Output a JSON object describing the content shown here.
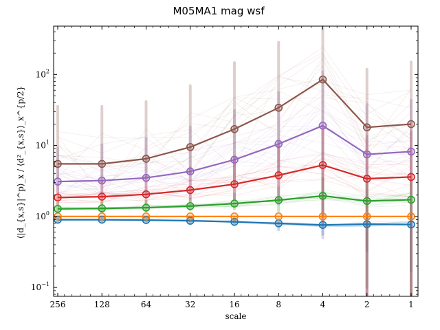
{
  "chart_data": {
    "type": "line",
    "title": "M05MA1 mag wsf",
    "xlabel": "scale",
    "ylabel": "⟨|d_{x,s}|^p⟩_x / ⟨d²_{x,s}⟩_x^{p/2}",
    "x_scale": "log (reversed)",
    "y_scale": "log",
    "xlim": [
      1,
      256
    ],
    "ylim": [
      0.075,
      480
    ],
    "categories": [
      "256",
      "128",
      "64",
      "32",
      "16",
      "8",
      "4",
      "2",
      "1"
    ],
    "x": [
      256,
      128,
      64,
      32,
      16,
      8,
      4,
      2,
      1
    ],
    "y_ticks": [
      {
        "value": 0.1,
        "base": "10",
        "exp": "−1"
      },
      {
        "value": 1,
        "base": "10",
        "exp": "0"
      },
      {
        "value": 10,
        "base": "10",
        "exp": "1"
      },
      {
        "value": 100,
        "base": "10",
        "exp": "2"
      }
    ],
    "legend": "none",
    "grid": false,
    "series": [
      {
        "color": "#1f77b4",
        "values": [
          0.9,
          0.9,
          0.89,
          0.87,
          0.84,
          0.8,
          0.76,
          0.78,
          0.77
        ],
        "err_low": [
          0.05,
          0.05,
          0.05,
          0.06,
          0.08,
          0.15,
          0.2,
          0.45,
          0.6
        ],
        "err_high": [
          0.08,
          0.08,
          0.08,
          0.08,
          0.1,
          0.12,
          0.15,
          0.3,
          0.35
        ]
      },
      {
        "color": "#ff7f0e",
        "values": [
          1.0,
          1.0,
          1.0,
          1.0,
          1.0,
          1.0,
          1.0,
          1.0,
          1.0
        ],
        "err_low": [
          0,
          0,
          0,
          0,
          0,
          0,
          0,
          0,
          0
        ],
        "err_high": [
          0,
          0,
          0,
          0,
          0,
          0,
          0,
          0,
          0
        ]
      },
      {
        "color": "#2ca02c",
        "values": [
          1.28,
          1.3,
          1.33,
          1.4,
          1.52,
          1.7,
          1.95,
          1.65,
          1.72
        ],
        "err_low": [
          0.1,
          0.1,
          0.12,
          0.15,
          0.25,
          0.5,
          0.95,
          1.55,
          1.68
        ],
        "err_high": [
          0.25,
          0.25,
          0.3,
          0.35,
          0.55,
          0.9,
          1.5,
          1.3,
          1.4
        ]
      },
      {
        "color": "#d62728",
        "values": [
          1.85,
          1.9,
          2.05,
          2.35,
          2.85,
          3.8,
          5.3,
          3.4,
          3.6
        ],
        "err_low": [
          0.35,
          0.4,
          0.5,
          0.7,
          1.1,
          2.0,
          4.5,
          3.35,
          3.59
        ],
        "err_high": [
          1.0,
          1.2,
          1.6,
          2.5,
          4.0,
          7.0,
          12,
          10,
          12
        ]
      },
      {
        "color": "#9467bd",
        "values": [
          3.1,
          3.2,
          3.5,
          4.3,
          6.3,
          10.5,
          19,
          7.5,
          8.2
        ],
        "err_low": [
          0.9,
          1.2,
          1.6,
          2.5,
          4.5,
          9.0,
          18.5,
          7.49,
          8.19
        ],
        "err_high": [
          6,
          7,
          9,
          14,
          25,
          45,
          90,
          30,
          35
        ]
      },
      {
        "color": "#8c564b",
        "values": [
          5.5,
          5.5,
          6.5,
          9.5,
          17,
          34,
          85,
          18,
          20
        ],
        "err_low": [
          2.0,
          2.5,
          3.0,
          5.5,
          14,
          30,
          84,
          17.98,
          19.98
        ],
        "err_high": [
          30,
          30,
          35,
          60,
          130,
          250,
          450,
          100,
          130
        ]
      }
    ]
  }
}
